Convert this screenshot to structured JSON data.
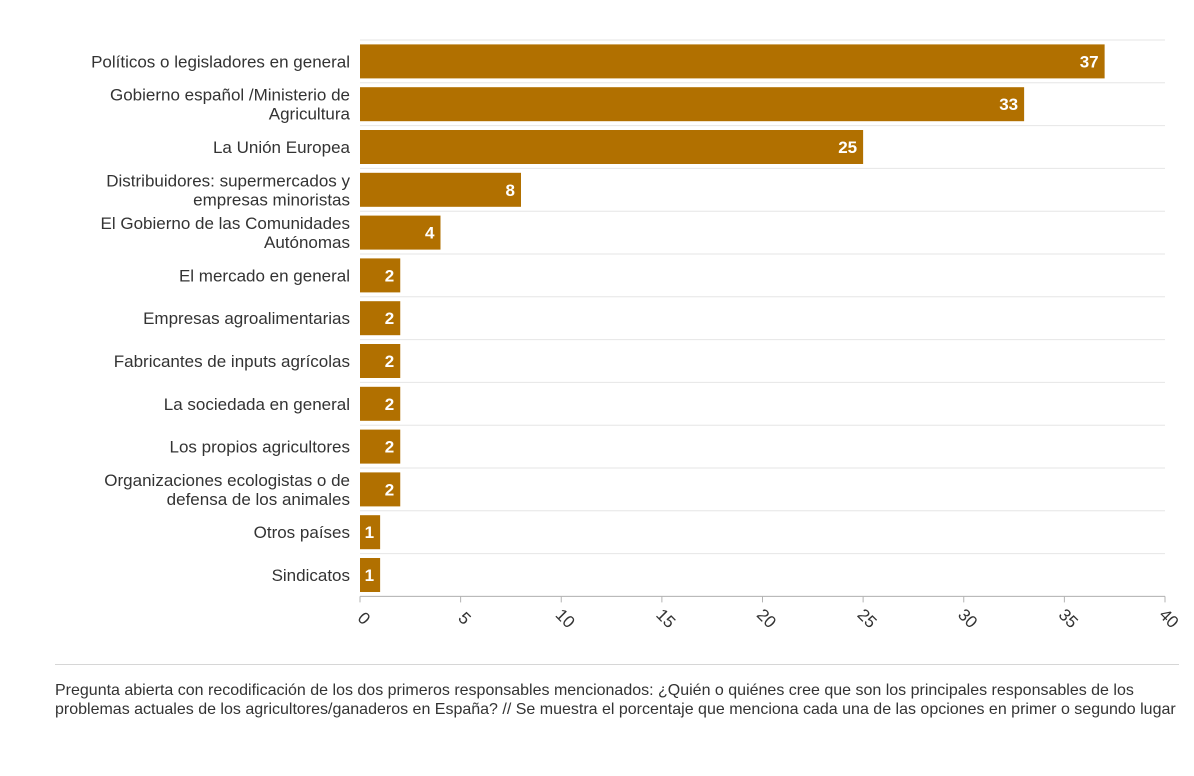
{
  "colors": {
    "bar": "#b17000",
    "grid": "#e6e6e6",
    "axis": "#b3b3b3",
    "text": "#333333",
    "bar_label": "#ffffff"
  },
  "chart_data": {
    "type": "bar",
    "orientation": "horizontal",
    "categories": [
      [
        "Políticos o legisladores en general"
      ],
      [
        "Gobierno español /Ministerio de",
        "Agricultura"
      ],
      [
        "La Unión Europea"
      ],
      [
        "Distribuidores: supermercados y",
        "empresas minoristas"
      ],
      [
        "El Gobierno de las Comunidades",
        "Autónomas"
      ],
      [
        "El mercado en general"
      ],
      [
        "Empresas agroalimentarias"
      ],
      [
        "Fabricantes de inputs agrícolas"
      ],
      [
        "La sociedada en general"
      ],
      [
        "Los propios agricultores"
      ],
      [
        "Organizaciones ecologistas o de",
        "defensa de los animales"
      ],
      [
        "Otros países"
      ],
      [
        "Sindicatos"
      ]
    ],
    "values": [
      37,
      33,
      25,
      8,
      4,
      2,
      2,
      2,
      2,
      2,
      2,
      1,
      1
    ],
    "xlim": [
      0,
      40
    ],
    "xticks": [
      0,
      5,
      10,
      15,
      20,
      25,
      30,
      35,
      40
    ],
    "grid": true,
    "data_labels": true,
    "legend": "none"
  },
  "footnote": "Pregunta abierta con recodificación de los dos primeros responsables mencionados: ¿Quién o quiénes cree que son los principales responsables de los problemas actuales de los agricultores/ganaderos en España? // Se muestra el porcentaje que menciona cada una de las opciones en primer o segundo lugar"
}
